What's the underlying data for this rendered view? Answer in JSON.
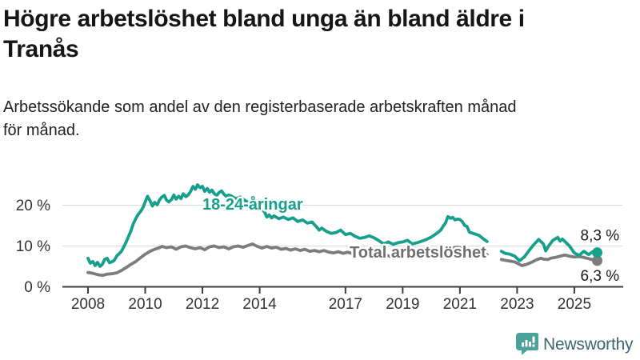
{
  "footer": {
    "brand": "Newsworthy"
  },
  "brand_colors": {
    "icon_teal": "#4aa29b",
    "text_slate": "#3d6577"
  },
  "chart_data": {
    "type": "line",
    "title": "Högre arbetslöshet bland unga än bland äldre i Tranås",
    "subtitle": "Arbetssökande som andel av den registerbaserade arbetskraften månad för månad.",
    "unit": "%",
    "grid": "horizontal",
    "legend_position": "inline-labels",
    "x_axis": {
      "ticks": [
        2008,
        2010,
        2012,
        2014,
        2017,
        2019,
        2021,
        2023,
        2025
      ],
      "range": [
        2007.1,
        2026.7
      ]
    },
    "y_axis": {
      "ticks": [
        {
          "v": 0,
          "label": "0 %"
        },
        {
          "v": 10,
          "label": "10 %"
        },
        {
          "v": 20,
          "label": "20 %"
        }
      ],
      "range": [
        0,
        26
      ]
    },
    "series": [
      {
        "name": "18-24-åringar",
        "color": "#16a08c",
        "end_label": "8,3 %",
        "end_value": 8.3,
        "segments": [
          [
            [
              2008.0,
              6.9
            ],
            [
              2008.08,
              5.7
            ],
            [
              2008.17,
              6.1
            ],
            [
              2008.25,
              5.1
            ],
            [
              2008.33,
              5.9
            ],
            [
              2008.42,
              4.9
            ],
            [
              2008.5,
              5.4
            ],
            [
              2008.58,
              6.6
            ],
            [
              2008.67,
              6.9
            ],
            [
              2008.75,
              5.8
            ],
            [
              2008.83,
              6.0
            ],
            [
              2008.92,
              6.4
            ],
            [
              2009.0,
              7.4
            ],
            [
              2009.17,
              8.6
            ],
            [
              2009.33,
              10.8
            ],
            [
              2009.5,
              13.6
            ],
            [
              2009.58,
              15.3
            ],
            [
              2009.67,
              16.6
            ],
            [
              2009.75,
              17.6
            ],
            [
              2009.83,
              18.3
            ],
            [
              2009.92,
              19.3
            ],
            [
              2010.0,
              20.7
            ],
            [
              2010.08,
              22.1
            ],
            [
              2010.17,
              21.0
            ],
            [
              2010.25,
              19.7
            ],
            [
              2010.33,
              20.6
            ],
            [
              2010.42,
              20.0
            ],
            [
              2010.5,
              21.2
            ],
            [
              2010.58,
              21.9
            ],
            [
              2010.67,
              22.3
            ],
            [
              2010.75,
              21.1
            ],
            [
              2010.83,
              20.7
            ],
            [
              2010.92,
              21.3
            ],
            [
              2011.0,
              22.4
            ],
            [
              2011.08,
              21.4
            ],
            [
              2011.17,
              22.1
            ],
            [
              2011.25,
              21.5
            ],
            [
              2011.33,
              22.7
            ],
            [
              2011.42,
              22.0
            ],
            [
              2011.5,
              22.4
            ],
            [
              2011.58,
              23.2
            ],
            [
              2011.67,
              24.5
            ],
            [
              2011.75,
              23.8
            ],
            [
              2011.83,
              24.9
            ],
            [
              2011.92,
              24.2
            ],
            [
              2012.0,
              24.5
            ],
            [
              2012.08,
              23.3
            ],
            [
              2012.17,
              24.0
            ],
            [
              2012.25,
              23.1
            ],
            [
              2012.33,
              23.6
            ],
            [
              2012.42,
              22.7
            ],
            [
              2012.5,
              22.3
            ],
            [
              2012.58,
              23.0
            ],
            [
              2012.67,
              23.4
            ],
            [
              2012.75,
              22.6
            ],
            [
              2012.83,
              22.1
            ],
            [
              2012.92,
              22.4
            ],
            [
              2013.0,
              22.2
            ],
            [
              2013.17,
              21.5
            ],
            [
              2013.33,
              21.9
            ],
            [
              2013.5,
              21.0
            ],
            [
              2013.67,
              20.4
            ],
            [
              2013.83,
              19.7
            ],
            [
              2014.0,
              19.9
            ],
            [
              2014.08,
              18.9
            ],
            [
              2014.17,
              18.3
            ],
            [
              2014.25,
              17.0
            ],
            [
              2014.33,
              17.5
            ],
            [
              2014.42,
              16.8
            ],
            [
              2014.5,
              17.3
            ],
            [
              2014.67,
              16.6
            ],
            [
              2014.83,
              17.0
            ],
            [
              2015.0,
              16.4
            ],
            [
              2015.17,
              16.8
            ],
            [
              2015.33,
              15.9
            ],
            [
              2015.5,
              16.3
            ],
            [
              2015.67,
              15.5
            ],
            [
              2015.83,
              15.8
            ],
            [
              2016.0,
              14.5
            ],
            [
              2016.08,
              13.8
            ],
            [
              2016.17,
              14.3
            ],
            [
              2016.33,
              13.5
            ],
            [
              2016.5,
              13.0
            ],
            [
              2016.67,
              13.2
            ],
            [
              2016.83,
              13.8
            ],
            [
              2017.0,
              12.7
            ],
            [
              2017.17,
              13.0
            ],
            [
              2017.33,
              12.3
            ],
            [
              2017.5,
              11.8
            ],
            [
              2017.67,
              12.0
            ],
            [
              2017.83,
              12.4
            ],
            [
              2018.0,
              11.9
            ],
            [
              2018.17,
              11.2
            ],
            [
              2018.33,
              10.4
            ],
            [
              2018.5,
              10.9
            ],
            [
              2018.67,
              10.3
            ],
            [
              2018.83,
              10.7
            ],
            [
              2019.0,
              10.9
            ],
            [
              2019.17,
              11.3
            ],
            [
              2019.33,
              10.4
            ],
            [
              2019.5,
              10.7
            ],
            [
              2019.67,
              11.1
            ],
            [
              2019.83,
              11.5
            ],
            [
              2020.0,
              12.1
            ],
            [
              2020.17,
              12.9
            ],
            [
              2020.33,
              13.8
            ],
            [
              2020.42,
              14.8
            ],
            [
              2020.5,
              15.6
            ],
            [
              2020.58,
              17.1
            ],
            [
              2020.67,
              16.7
            ],
            [
              2020.75,
              16.9
            ],
            [
              2020.83,
              16.3
            ],
            [
              2020.92,
              16.5
            ],
            [
              2021.0,
              16.4
            ],
            [
              2021.08,
              15.9
            ],
            [
              2021.17,
              14.9
            ],
            [
              2021.25,
              14.7
            ],
            [
              2021.33,
              13.3
            ],
            [
              2021.5,
              12.9
            ],
            [
              2021.67,
              12.5
            ],
            [
              2021.83,
              11.6
            ],
            [
              2021.95,
              11.0
            ]
          ],
          [
            [
              2022.45,
              8.6
            ],
            [
              2022.58,
              8.1
            ],
            [
              2022.75,
              7.9
            ],
            [
              2022.92,
              7.4
            ],
            [
              2023.08,
              6.3
            ],
            [
              2023.25,
              7.2
            ],
            [
              2023.42,
              8.8
            ],
            [
              2023.58,
              10.2
            ],
            [
              2023.75,
              11.5
            ],
            [
              2023.83,
              11.0
            ],
            [
              2023.92,
              10.4
            ],
            [
              2024.0,
              8.7
            ],
            [
              2024.08,
              9.7
            ],
            [
              2024.25,
              11.3
            ],
            [
              2024.42,
              12.0
            ],
            [
              2024.5,
              11.1
            ],
            [
              2024.58,
              11.6
            ],
            [
              2024.67,
              11.0
            ],
            [
              2024.83,
              9.9
            ],
            [
              2025.0,
              8.2
            ],
            [
              2025.17,
              7.6
            ],
            [
              2025.33,
              8.6
            ],
            [
              2025.5,
              7.8
            ],
            [
              2025.67,
              8.6
            ],
            [
              2025.8,
              8.3
            ]
          ]
        ]
      },
      {
        "name": "Total arbetslöshet",
        "color": "#7c7c7c",
        "label_color": "#6f6f6f",
        "end_label": "6,3 %",
        "end_value": 6.3,
        "segments": [
          [
            [
              2008.0,
              3.4
            ],
            [
              2008.17,
              3.2
            ],
            [
              2008.33,
              2.9
            ],
            [
              2008.5,
              2.7
            ],
            [
              2008.67,
              3.0
            ],
            [
              2008.83,
              3.1
            ],
            [
              2009.0,
              3.3
            ],
            [
              2009.17,
              3.9
            ],
            [
              2009.33,
              4.6
            ],
            [
              2009.5,
              5.4
            ],
            [
              2009.67,
              6.1
            ],
            [
              2009.83,
              7.0
            ],
            [
              2010.0,
              7.9
            ],
            [
              2010.17,
              8.6
            ],
            [
              2010.33,
              9.1
            ],
            [
              2010.5,
              9.5
            ],
            [
              2010.58,
              9.8
            ],
            [
              2010.75,
              9.5
            ],
            [
              2010.92,
              9.7
            ],
            [
              2011.08,
              9.1
            ],
            [
              2011.25,
              9.7
            ],
            [
              2011.42,
              9.9
            ],
            [
              2011.58,
              9.5
            ],
            [
              2011.75,
              9.2
            ],
            [
              2011.92,
              9.5
            ],
            [
              2012.08,
              9.0
            ],
            [
              2012.25,
              9.7
            ],
            [
              2012.42,
              9.9
            ],
            [
              2012.58,
              9.5
            ],
            [
              2012.75,
              9.7
            ],
            [
              2012.92,
              9.2
            ],
            [
              2013.08,
              9.7
            ],
            [
              2013.25,
              9.9
            ],
            [
              2013.42,
              9.6
            ],
            [
              2013.58,
              10.0
            ],
            [
              2013.75,
              10.4
            ],
            [
              2013.92,
              9.8
            ],
            [
              2014.08,
              9.4
            ],
            [
              2014.25,
              9.8
            ],
            [
              2014.42,
              9.4
            ],
            [
              2014.58,
              9.6
            ],
            [
              2014.75,
              9.1
            ],
            [
              2014.92,
              9.3
            ],
            [
              2015.08,
              8.9
            ],
            [
              2015.25,
              9.2
            ],
            [
              2015.42,
              8.8
            ],
            [
              2015.58,
              9.1
            ],
            [
              2015.75,
              8.6
            ],
            [
              2015.92,
              8.8
            ],
            [
              2016.08,
              8.5
            ],
            [
              2016.25,
              8.8
            ],
            [
              2016.42,
              8.4
            ],
            [
              2016.58,
              8.2
            ],
            [
              2016.75,
              8.5
            ],
            [
              2016.92,
              8.1
            ],
            [
              2017.08,
              8.4
            ],
            [
              2017.25,
              8.0
            ],
            [
              2017.42,
              8.3
            ],
            [
              2017.58,
              7.8
            ],
            [
              2017.75,
              8.0
            ],
            [
              2017.92,
              7.6
            ],
            [
              2018.08,
              7.9
            ],
            [
              2018.25,
              7.5
            ],
            [
              2018.42,
              7.7
            ],
            [
              2018.58,
              7.3
            ],
            [
              2018.75,
              7.5
            ],
            [
              2018.92,
              7.2
            ],
            [
              2019.08,
              7.5
            ],
            [
              2019.25,
              7.2
            ],
            [
              2019.42,
              7.4
            ],
            [
              2019.58,
              7.1
            ],
            [
              2019.75,
              7.4
            ],
            [
              2019.92,
              7.8
            ],
            [
              2020.08,
              8.3
            ],
            [
              2020.25,
              8.8
            ],
            [
              2020.42,
              9.2
            ],
            [
              2020.58,
              9.6
            ],
            [
              2020.75,
              9.4
            ],
            [
              2020.92,
              9.6
            ],
            [
              2021.08,
              9.3
            ],
            [
              2021.25,
              9.0
            ],
            [
              2021.42,
              8.7
            ],
            [
              2021.58,
              8.4
            ],
            [
              2021.75,
              8.1
            ],
            [
              2021.95,
              7.8
            ]
          ],
          [
            [
              2022.45,
              6.6
            ],
            [
              2022.58,
              6.4
            ],
            [
              2022.75,
              6.2
            ],
            [
              2022.92,
              6.0
            ],
            [
              2023.08,
              5.4
            ],
            [
              2023.17,
              5.1
            ],
            [
              2023.33,
              5.4
            ],
            [
              2023.5,
              5.9
            ],
            [
              2023.67,
              6.5
            ],
            [
              2023.83,
              6.9
            ],
            [
              2023.92,
              6.7
            ],
            [
              2024.08,
              6.6
            ],
            [
              2024.17,
              6.9
            ],
            [
              2024.33,
              7.1
            ],
            [
              2024.5,
              7.4
            ],
            [
              2024.67,
              7.7
            ],
            [
              2024.83,
              7.4
            ],
            [
              2025.0,
              7.2
            ],
            [
              2025.17,
              7.3
            ],
            [
              2025.33,
              7.1
            ],
            [
              2025.5,
              6.8
            ],
            [
              2025.67,
              6.5
            ],
            [
              2025.8,
              6.3
            ]
          ]
        ]
      }
    ]
  }
}
